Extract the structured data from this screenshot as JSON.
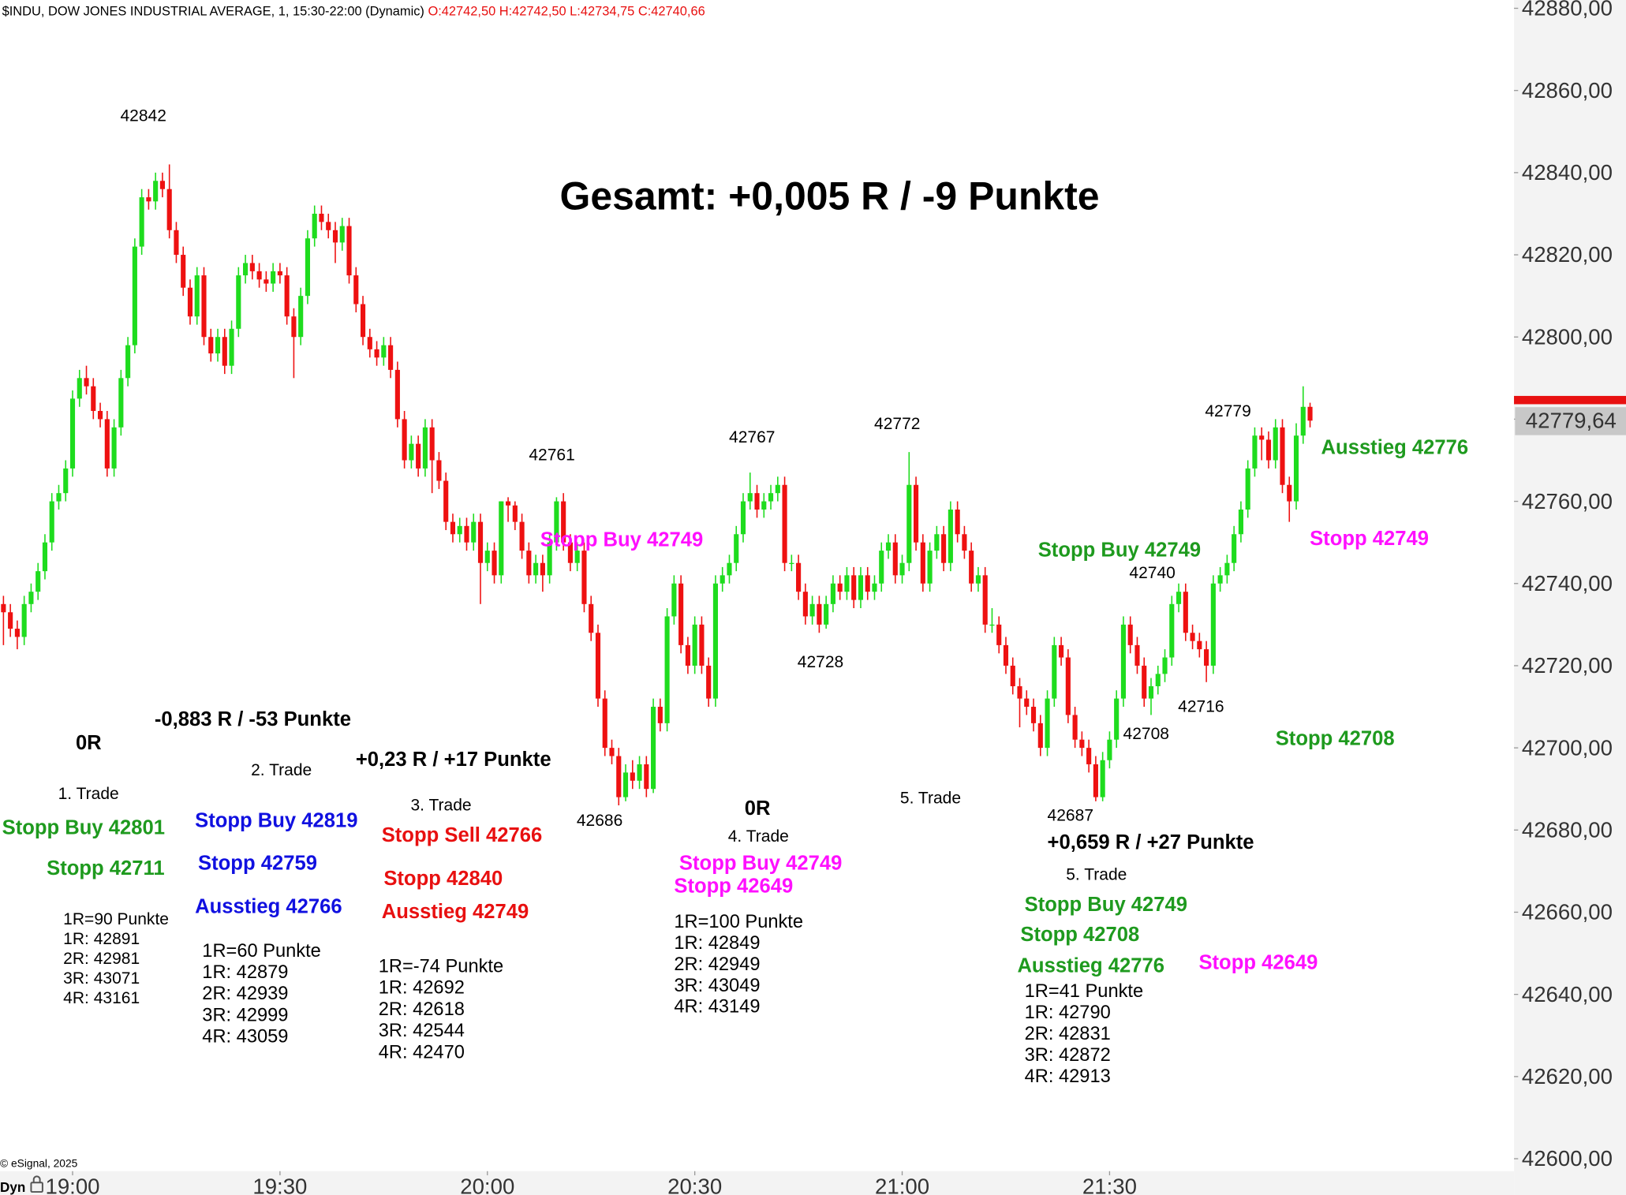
{
  "chart_data": {
    "type": "candlestick",
    "header": "$INDU, DOW JONES INDUSTRIAL AVERAGE, 1, 15:30-22:00 (Dynamic)",
    "header_ohlc": "O:42742,50 H:42742,50 L:42734,75 C:42740,66",
    "footer": "© eSignal, 2025",
    "mode": "Dyn",
    "up_color": "#1edc1e",
    "down_color": "#ee1111",
    "ylim": [
      42600,
      42880
    ],
    "yticks": [
      {
        "value": 42600,
        "label": "42600,00"
      },
      {
        "value": 42620,
        "label": "42620,00"
      },
      {
        "value": 42640,
        "label": "42640,00"
      },
      {
        "value": 42660,
        "label": "42660,00"
      },
      {
        "value": 42680,
        "label": "42680,00"
      },
      {
        "value": 42700,
        "label": "42700,00"
      },
      {
        "value": 42720,
        "label": "42720,00"
      },
      {
        "value": 42740,
        "label": "42740,00"
      },
      {
        "value": 42760,
        "label": "42760,00"
      },
      {
        "value": 42780,
        "label": "42780,00"
      },
      {
        "value": 42800,
        "label": "42800,00"
      },
      {
        "value": 42820,
        "label": "42820,00"
      },
      {
        "value": 42840,
        "label": "42840,00"
      },
      {
        "value": 42860,
        "label": "42860,00"
      },
      {
        "value": 42880,
        "label": "42880,00"
      }
    ],
    "xlim": [
      -0.5,
      218.5
    ],
    "xticks": [
      {
        "value": 10,
        "label": "19:00"
      },
      {
        "value": 40,
        "label": "19:30"
      },
      {
        "value": 70,
        "label": "20:00"
      },
      {
        "value": 100,
        "label": "20:30"
      },
      {
        "value": 130,
        "label": "21:00"
      },
      {
        "value": 160,
        "label": "21:30"
      }
    ],
    "last_price": {
      "value": 42779.64,
      "label": "42779,64"
    },
    "ohlc": [
      [
        42735,
        42737,
        42725,
        42733
      ],
      [
        42733,
        42735,
        42727,
        42729
      ],
      [
        42729,
        42731,
        42724,
        42727
      ],
      [
        42727,
        42737,
        42725,
        42735
      ],
      [
        42735,
        42740,
        42733,
        42738
      ],
      [
        42738,
        42745,
        42736,
        42743
      ],
      [
        42743,
        42752,
        42741,
        42750
      ],
      [
        42750,
        42762,
        42748,
        42760
      ],
      [
        42760,
        42764,
        42758,
        42762
      ],
      [
        42762,
        42770,
        42760,
        42768
      ],
      [
        42768,
        42787,
        42766,
        42785
      ],
      [
        42785,
        42792,
        42783,
        42790
      ],
      [
        42790,
        42793,
        42786,
        42788
      ],
      [
        42788,
        42790,
        42780,
        42782
      ],
      [
        42782,
        42784,
        42778,
        42780
      ],
      [
        42780,
        42782,
        42766,
        42768
      ],
      [
        42768,
        42780,
        42766,
        42778
      ],
      [
        42778,
        42792,
        42776,
        42790
      ],
      [
        42790,
        42800,
        42788,
        42798
      ],
      [
        42798,
        42824,
        42796,
        42822
      ],
      [
        42822,
        42836,
        42820,
        42834
      ],
      [
        42834,
        42836,
        42831,
        42833
      ],
      [
        42833,
        42840,
        42831,
        42838
      ],
      [
        42838,
        42840,
        42834,
        42836
      ],
      [
        42836,
        42842,
        42824,
        42826
      ],
      [
        42826,
        42828,
        42818,
        42820
      ],
      [
        42820,
        42822,
        42810,
        42812
      ],
      [
        42812,
        42814,
        42803,
        42805
      ],
      [
        42805,
        42817,
        42803,
        42815
      ],
      [
        42815,
        42817,
        42798,
        42800
      ],
      [
        42800,
        42802,
        42794,
        42796
      ],
      [
        42796,
        42802,
        42794,
        42800
      ],
      [
        42800,
        42802,
        42791,
        42793
      ],
      [
        42793,
        42804,
        42791,
        42802
      ],
      [
        42802,
        42817,
        42800,
        42815
      ],
      [
        42815,
        42820,
        42813,
        42818
      ],
      [
        42818,
        42820,
        42814,
        42816
      ],
      [
        42816,
        42818,
        42812,
        42814
      ],
      [
        42814,
        42816,
        42811,
        42813
      ],
      [
        42813,
        42818,
        42811,
        42816
      ],
      [
        42816,
        42818,
        42813,
        42815
      ],
      [
        42815,
        42817,
        42803,
        42805
      ],
      [
        42805,
        42807,
        42790,
        42800
      ],
      [
        42800,
        42812,
        42798,
        42810
      ],
      [
        42810,
        42826,
        42808,
        42824
      ],
      [
        42824,
        42832,
        42822,
        42830
      ],
      [
        42830,
        42832,
        42826,
        42828
      ],
      [
        42828,
        42830,
        42824,
        42826
      ],
      [
        42826,
        42828,
        42818,
        42823
      ],
      [
        42823,
        42829,
        42821,
        42827
      ],
      [
        42827,
        42829,
        42813,
        42815
      ],
      [
        42815,
        42817,
        42806,
        42808
      ],
      [
        42808,
        42810,
        42798,
        42800
      ],
      [
        42800,
        42802,
        42795,
        42797
      ],
      [
        42797,
        42799,
        42793,
        42795
      ],
      [
        42795,
        42800,
        42793,
        42798
      ],
      [
        42798,
        42800,
        42790,
        42792
      ],
      [
        42792,
        42794,
        42778,
        42780
      ],
      [
        42780,
        42782,
        42768,
        42770
      ],
      [
        42770,
        42776,
        42768,
        42774
      ],
      [
        42774,
        42776,
        42766,
        42768
      ],
      [
        42768,
        42780,
        42766,
        42778
      ],
      [
        42778,
        42780,
        42762,
        42770
      ],
      [
        42770,
        42772,
        42763,
        42765
      ],
      [
        42765,
        42767,
        42753,
        42755
      ],
      [
        42755,
        42757,
        42750,
        42752
      ],
      [
        42752,
        42756,
        42750,
        42754
      ],
      [
        42754,
        42756,
        42748,
        42750
      ],
      [
        42750,
        42757,
        42748,
        42755
      ],
      [
        42755,
        42757,
        42735,
        42745
      ],
      [
        42745,
        42750,
        42743,
        42748
      ],
      [
        42748,
        42750,
        42740,
        42742
      ],
      [
        42742,
        42760,
        42740,
        42760
      ],
      [
        42760,
        42761,
        42755,
        42759
      ],
      [
        42759,
        42760,
        42753,
        42755
      ],
      [
        42755,
        42757,
        42746,
        42748
      ],
      [
        42748,
        42750,
        42740,
        42742
      ],
      [
        42742,
        42747,
        42740,
        42745
      ],
      [
        42745,
        42747,
        42738,
        42742
      ],
      [
        42742,
        42752,
        42740,
        42750
      ],
      [
        42750,
        42761,
        42748,
        42760
      ],
      [
        42760,
        42762,
        42748,
        42750
      ],
      [
        42750,
        42752,
        42743,
        42745
      ],
      [
        42745,
        42750,
        42743,
        42748
      ],
      [
        42748,
        42750,
        42733,
        42735
      ],
      [
        42735,
        42737,
        42726,
        42728
      ],
      [
        42728,
        42730,
        42710,
        42712
      ],
      [
        42712,
        42714,
        42698,
        42700
      ],
      [
        42700,
        42702,
        42696,
        42698
      ],
      [
        42698,
        42700,
        42686,
        42688
      ],
      [
        42688,
        42696,
        42687,
        42694
      ],
      [
        42694,
        42697,
        42690,
        42692
      ],
      [
        42692,
        42698,
        42690,
        42696
      ],
      [
        42696,
        42698,
        42688,
        42690
      ],
      [
        42690,
        42712,
        42689,
        42710
      ],
      [
        42710,
        42712,
        42704,
        42706
      ],
      [
        42706,
        42734,
        42704,
        42732
      ],
      [
        42732,
        42742,
        42730,
        42740
      ],
      [
        42740,
        42742,
        42723,
        42725
      ],
      [
        42725,
        42727,
        42718,
        42720
      ],
      [
        42720,
        42732,
        42718,
        42730
      ],
      [
        42730,
        42732,
        42718,
        42720
      ],
      [
        42720,
        42722,
        42710,
        42712
      ],
      [
        42712,
        42742,
        42710,
        42740
      ],
      [
        42740,
        42744,
        42738,
        42742
      ],
      [
        42742,
        42747,
        42740,
        42745
      ],
      [
        42745,
        42754,
        42743,
        42752
      ],
      [
        42752,
        42762,
        42750,
        42760
      ],
      [
        42760,
        42767,
        42758,
        42762
      ],
      [
        42762,
        42764,
        42756,
        42758
      ],
      [
        42758,
        42762,
        42756,
        42760
      ],
      [
        42760,
        42764,
        42758,
        42762
      ],
      [
        42762,
        42766,
        42760,
        42764
      ],
      [
        42764,
        42766,
        42743,
        42745
      ],
      [
        42745,
        42747,
        42743,
        42745
      ],
      [
        42745,
        42747,
        42736,
        42738
      ],
      [
        42738,
        42740,
        42730,
        42732
      ],
      [
        42732,
        42737,
        42730,
        42735
      ],
      [
        42735,
        42737,
        42728,
        42730
      ],
      [
        42730,
        42737,
        42729,
        42735
      ],
      [
        42735,
        42742,
        42733,
        42740
      ],
      [
        42740,
        42742,
        42736,
        42738
      ],
      [
        42738,
        42744,
        42736,
        42742
      ],
      [
        42742,
        42744,
        42734,
        42736
      ],
      [
        42736,
        42744,
        42734,
        42742
      ],
      [
        42742,
        42744,
        42736,
        42738
      ],
      [
        42738,
        42742,
        42736,
        42740
      ],
      [
        42740,
        42750,
        42738,
        42748
      ],
      [
        42748,
        42752,
        42746,
        42750
      ],
      [
        42750,
        42752,
        42740,
        42742
      ],
      [
        42742,
        42747,
        42740,
        42745
      ],
      [
        42745,
        42772,
        42743,
        42764
      ],
      [
        42764,
        42766,
        42748,
        42750
      ],
      [
        42750,
        42752,
        42738,
        42740
      ],
      [
        42740,
        42750,
        42738,
        42748
      ],
      [
        42748,
        42754,
        42746,
        42752
      ],
      [
        42752,
        42754,
        42743,
        42745
      ],
      [
        42745,
        42760,
        42743,
        42758
      ],
      [
        42758,
        42760,
        42750,
        42752
      ],
      [
        42752,
        42754,
        42746,
        42748
      ],
      [
        42748,
        42750,
        42738,
        42740
      ],
      [
        42740,
        42744,
        42738,
        42742
      ],
      [
        42742,
        42744,
        42728,
        42730
      ],
      [
        42730,
        42734,
        42728,
        42730
      ],
      [
        42730,
        42732,
        42723,
        42725
      ],
      [
        42725,
        42727,
        42718,
        42720
      ],
      [
        42720,
        42722,
        42713,
        42715
      ],
      [
        42715,
        42717,
        42705,
        42712
      ],
      [
        42712,
        42714,
        42708,
        42710
      ],
      [
        42710,
        42712,
        42704,
        42706
      ],
      [
        42706,
        42708,
        42698,
        42700
      ],
      [
        42700,
        42714,
        42698,
        42712
      ],
      [
        42712,
        42727,
        42710,
        42725
      ],
      [
        42725,
        42727,
        42720,
        42722
      ],
      [
        42722,
        42724,
        42706,
        42708
      ],
      [
        42708,
        42710,
        42700,
        42702
      ],
      [
        42702,
        42704,
        42698,
        42700
      ],
      [
        42700,
        42702,
        42694,
        42696
      ],
      [
        42696,
        42698,
        42687,
        42688
      ],
      [
        42688,
        42699,
        42687,
        42697
      ],
      [
        42697,
        42704,
        42695,
        42702
      ],
      [
        42702,
        42714,
        42700,
        42712
      ],
      [
        42712,
        42732,
        42710,
        42730
      ],
      [
        42730,
        42732,
        42723,
        42725
      ],
      [
        42725,
        42727,
        42718,
        42720
      ],
      [
        42720,
        42722,
        42710,
        42712
      ],
      [
        42712,
        42717,
        42708,
        42715
      ],
      [
        42715,
        42720,
        42713,
        42718
      ],
      [
        42718,
        42724,
        42716,
        42722
      ],
      [
        42722,
        42737,
        42720,
        42735
      ],
      [
        42735,
        42740,
        42733,
        42738
      ],
      [
        42738,
        42740,
        42726,
        42728
      ],
      [
        42728,
        42730,
        42724,
        42726
      ],
      [
        42726,
        42728,
        42722,
        42724
      ],
      [
        42724,
        42726,
        42716,
        42720
      ],
      [
        42720,
        42742,
        42718,
        42740
      ],
      [
        42740,
        42744,
        42738,
        42742
      ],
      [
        42742,
        42747,
        42740,
        42745
      ],
      [
        42745,
        42754,
        42743,
        42752
      ],
      [
        42752,
        42760,
        42750,
        42758
      ],
      [
        42758,
        42770,
        42756,
        42768
      ],
      [
        42768,
        42778,
        42766,
        42776
      ],
      [
        42776,
        42778,
        42770,
        42775
      ],
      [
        42775,
        42777,
        42768,
        42770
      ],
      [
        42770,
        42780,
        42768,
        42778
      ],
      [
        42778,
        42780,
        42762,
        42764
      ],
      [
        42764,
        42766,
        42755,
        42760
      ],
      [
        42760,
        42779,
        42758,
        42776
      ],
      [
        42776,
        42788,
        42774,
        42783
      ],
      [
        42783,
        42784,
        42778,
        42779.64
      ]
    ],
    "annotations": [
      "42842",
      "Gesamt: +0,005 R / -9 Punkte",
      "42761",
      "Stopp Buy 42749",
      "42767",
      "42772",
      "42779",
      "Ausstieg 42776",
      "Stopp 42749",
      "Stopp Buy 42749",
      "42740",
      "42728",
      "42716",
      "42708",
      "Stopp 42708",
      "0R",
      "-0,883 R / -53 Punkte",
      "1. Trade",
      "2. Trade",
      "+0,23 R / +17 Punkte",
      "3. Trade",
      "42686",
      "0R",
      "4. Trade",
      "5. Trade",
      "42687",
      "+0,659 R / +27 Punkte",
      "5. Trade",
      "Stopp Buy 42801",
      "Stopp 42711",
      "Stopp Buy 42819",
      "Stopp 42759",
      "Ausstieg 42766",
      "Stopp Sell 42766",
      "Stopp 42840",
      "Ausstieg 42749",
      "Stopp Buy 42749",
      "Stopp 42649",
      "Stopp Buy 42749",
      "Stopp 42708",
      "Ausstieg 42776",
      "Stopp 42649"
    ],
    "notes": [
      [
        "1R=90 Punkte",
        "1R: 42891",
        "2R: 42981",
        "3R: 43071",
        "4R: 43161"
      ],
      [
        "1R=60 Punkte",
        "1R: 42879",
        "2R: 42939",
        "3R: 42999",
        "4R: 43059"
      ],
      [
        "1R=-74 Punkte",
        "1R: 42692",
        "2R: 42618",
        "3R: 42544",
        "4R: 42470"
      ],
      [
        "1R=100 Punkte",
        "1R: 42849",
        "2R: 42949",
        "3R: 43049",
        "4R: 43149"
      ],
      [
        "1R=41 Punkte",
        "1R: 42790",
        "2R: 42831",
        "3R: 42872",
        "4R: 42913"
      ]
    ]
  }
}
